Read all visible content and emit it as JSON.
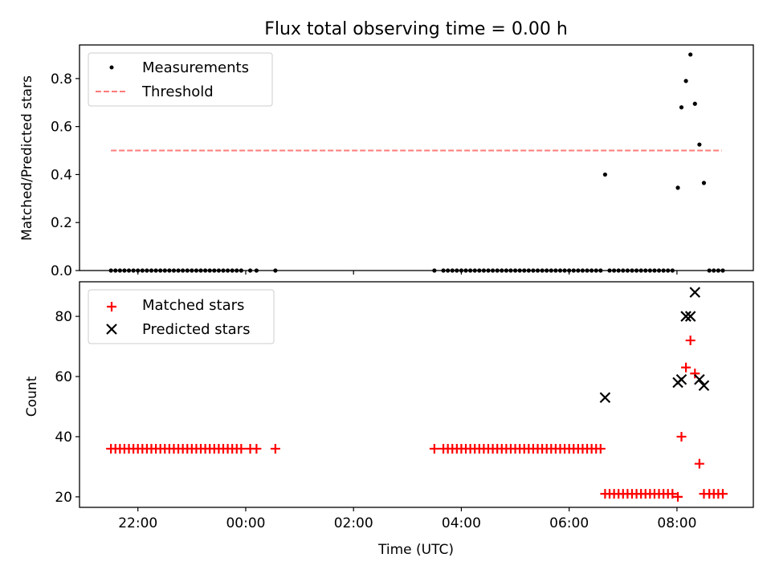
{
  "chart_data": [
    {
      "type": "scatter",
      "title": "Flux total observing time = 0.00 h",
      "xlabel": "",
      "ylabel": "Matched/Predicted stars",
      "ylim": [
        0.0,
        0.94
      ],
      "yticks": [
        "0.0",
        "0.2",
        "0.4",
        "0.6",
        "0.8"
      ],
      "legend_position": "top-left",
      "legend": [
        "Measurements",
        "Threshold"
      ],
      "threshold": {
        "name": "Threshold",
        "y": 0.5,
        "x_start": "21:30",
        "x_end": "08:50",
        "color": "#ff7a7a"
      },
      "series": [
        {
          "name": "Measurements",
          "color": "#000000",
          "points": [
            [
              "21:30",
              0
            ],
            [
              "21:35",
              0
            ],
            [
              "21:40",
              0
            ],
            [
              "21:45",
              0
            ],
            [
              "21:50",
              0
            ],
            [
              "21:55",
              0
            ],
            [
              "22:00",
              0
            ],
            [
              "22:05",
              0
            ],
            [
              "22:10",
              0
            ],
            [
              "22:15",
              0
            ],
            [
              "22:20",
              0
            ],
            [
              "22:25",
              0
            ],
            [
              "22:30",
              0
            ],
            [
              "22:35",
              0
            ],
            [
              "22:40",
              0
            ],
            [
              "22:45",
              0
            ],
            [
              "22:50",
              0
            ],
            [
              "22:55",
              0
            ],
            [
              "23:00",
              0
            ],
            [
              "23:05",
              0
            ],
            [
              "23:10",
              0
            ],
            [
              "23:15",
              0
            ],
            [
              "23:20",
              0
            ],
            [
              "23:25",
              0
            ],
            [
              "23:30",
              0
            ],
            [
              "23:35",
              0
            ],
            [
              "23:40",
              0
            ],
            [
              "23:45",
              0
            ],
            [
              "23:50",
              0
            ],
            [
              "23:55",
              0
            ],
            [
              "00:05",
              0
            ],
            [
              "00:12",
              0
            ],
            [
              "00:33",
              0
            ],
            [
              "03:30",
              0
            ],
            [
              "03:40",
              0
            ],
            [
              "03:45",
              0
            ],
            [
              "03:50",
              0
            ],
            [
              "03:55",
              0
            ],
            [
              "04:00",
              0
            ],
            [
              "04:05",
              0
            ],
            [
              "04:10",
              0
            ],
            [
              "04:15",
              0
            ],
            [
              "04:20",
              0
            ],
            [
              "04:25",
              0
            ],
            [
              "04:30",
              0
            ],
            [
              "04:35",
              0
            ],
            [
              "04:40",
              0
            ],
            [
              "04:45",
              0
            ],
            [
              "04:50",
              0
            ],
            [
              "04:55",
              0
            ],
            [
              "05:00",
              0
            ],
            [
              "05:05",
              0
            ],
            [
              "05:10",
              0
            ],
            [
              "05:15",
              0
            ],
            [
              "05:20",
              0
            ],
            [
              "05:25",
              0
            ],
            [
              "05:30",
              0
            ],
            [
              "05:35",
              0
            ],
            [
              "05:40",
              0
            ],
            [
              "05:45",
              0
            ],
            [
              "05:50",
              0
            ],
            [
              "05:55",
              0
            ],
            [
              "06:00",
              0
            ],
            [
              "06:05",
              0
            ],
            [
              "06:10",
              0
            ],
            [
              "06:15",
              0
            ],
            [
              "06:20",
              0
            ],
            [
              "06:25",
              0
            ],
            [
              "06:30",
              0
            ],
            [
              "06:35",
              0
            ],
            [
              "06:40",
              0.4
            ],
            [
              "06:45",
              0
            ],
            [
              "06:50",
              0
            ],
            [
              "06:55",
              0
            ],
            [
              "07:00",
              0
            ],
            [
              "07:05",
              0
            ],
            [
              "07:10",
              0
            ],
            [
              "07:15",
              0
            ],
            [
              "07:20",
              0
            ],
            [
              "07:25",
              0
            ],
            [
              "07:30",
              0
            ],
            [
              "07:35",
              0
            ],
            [
              "07:40",
              0
            ],
            [
              "07:45",
              0
            ],
            [
              "07:50",
              0
            ],
            [
              "07:55",
              0
            ],
            [
              "08:01",
              0.345
            ],
            [
              "08:05",
              0.68
            ],
            [
              "08:10",
              0.79
            ],
            [
              "08:15",
              0.9
            ],
            [
              "08:20",
              0.695
            ],
            [
              "08:25",
              0.525
            ],
            [
              "08:30",
              0.365
            ],
            [
              "08:36",
              0
            ],
            [
              "08:41",
              0
            ],
            [
              "08:46",
              0
            ],
            [
              "08:51",
              0
            ]
          ]
        }
      ]
    },
    {
      "type": "scatter",
      "title": "",
      "xlabel": "Time (UTC)",
      "ylabel": "Count",
      "ylim": [
        16.5,
        91.5
      ],
      "yticks": [
        "20",
        "40",
        "60",
        "80"
      ],
      "xticks": [
        "22:00",
        "00:00",
        "02:00",
        "04:00",
        "06:00",
        "08:00"
      ],
      "xlim": [
        "20:55",
        "09:25"
      ],
      "legend_position": "top-left",
      "legend": [
        "Matched stars",
        "Predicted stars"
      ],
      "series": [
        {
          "name": "Matched stars",
          "color": "#ff0000",
          "marker": "+",
          "points": [
            [
              "21:30",
              36
            ],
            [
              "21:35",
              36
            ],
            [
              "21:40",
              36
            ],
            [
              "21:45",
              36
            ],
            [
              "21:50",
              36
            ],
            [
              "21:55",
              36
            ],
            [
              "22:00",
              36
            ],
            [
              "22:05",
              36
            ],
            [
              "22:10",
              36
            ],
            [
              "22:15",
              36
            ],
            [
              "22:20",
              36
            ],
            [
              "22:25",
              36
            ],
            [
              "22:30",
              36
            ],
            [
              "22:35",
              36
            ],
            [
              "22:40",
              36
            ],
            [
              "22:45",
              36
            ],
            [
              "22:50",
              36
            ],
            [
              "22:55",
              36
            ],
            [
              "23:00",
              36
            ],
            [
              "23:05",
              36
            ],
            [
              "23:10",
              36
            ],
            [
              "23:15",
              36
            ],
            [
              "23:20",
              36
            ],
            [
              "23:25",
              36
            ],
            [
              "23:30",
              36
            ],
            [
              "23:35",
              36
            ],
            [
              "23:40",
              36
            ],
            [
              "23:45",
              36
            ],
            [
              "23:50",
              36
            ],
            [
              "23:55",
              36
            ],
            [
              "00:05",
              36
            ],
            [
              "00:12",
              36
            ],
            [
              "00:33",
              36
            ],
            [
              "03:30",
              36
            ],
            [
              "03:40",
              36
            ],
            [
              "03:45",
              36
            ],
            [
              "03:50",
              36
            ],
            [
              "03:55",
              36
            ],
            [
              "04:00",
              36
            ],
            [
              "04:05",
              36
            ],
            [
              "04:10",
              36
            ],
            [
              "04:15",
              36
            ],
            [
              "04:20",
              36
            ],
            [
              "04:25",
              36
            ],
            [
              "04:30",
              36
            ],
            [
              "04:35",
              36
            ],
            [
              "04:40",
              36
            ],
            [
              "04:45",
              36
            ],
            [
              "04:50",
              36
            ],
            [
              "04:55",
              36
            ],
            [
              "05:00",
              36
            ],
            [
              "05:05",
              36
            ],
            [
              "05:10",
              36
            ],
            [
              "05:15",
              36
            ],
            [
              "05:20",
              36
            ],
            [
              "05:25",
              36
            ],
            [
              "05:30",
              36
            ],
            [
              "05:35",
              36
            ],
            [
              "05:40",
              36
            ],
            [
              "05:45",
              36
            ],
            [
              "05:50",
              36
            ],
            [
              "05:55",
              36
            ],
            [
              "06:00",
              36
            ],
            [
              "06:05",
              36
            ],
            [
              "06:10",
              36
            ],
            [
              "06:15",
              36
            ],
            [
              "06:20",
              36
            ],
            [
              "06:25",
              36
            ],
            [
              "06:30",
              36
            ],
            [
              "06:35",
              36
            ],
            [
              "06:40",
              21
            ],
            [
              "06:45",
              21
            ],
            [
              "06:50",
              21
            ],
            [
              "06:55",
              21
            ],
            [
              "07:00",
              21
            ],
            [
              "07:05",
              21
            ],
            [
              "07:10",
              21
            ],
            [
              "07:15",
              21
            ],
            [
              "07:20",
              21
            ],
            [
              "07:25",
              21
            ],
            [
              "07:30",
              21
            ],
            [
              "07:35",
              21
            ],
            [
              "07:40",
              21
            ],
            [
              "07:45",
              21
            ],
            [
              "07:50",
              21
            ],
            [
              "07:55",
              21
            ],
            [
              "08:01",
              20
            ],
            [
              "08:05",
              40
            ],
            [
              "08:10",
              63
            ],
            [
              "08:15",
              72
            ],
            [
              "08:20",
              61
            ],
            [
              "08:25",
              31
            ],
            [
              "08:30",
              21
            ],
            [
              "08:36",
              21
            ],
            [
              "08:41",
              21
            ],
            [
              "08:46",
              21
            ],
            [
              "08:51",
              21
            ]
          ]
        },
        {
          "name": "Predicted stars",
          "color": "#000000",
          "marker": "x",
          "points": [
            [
              "06:40",
              53
            ],
            [
              "08:01",
              58
            ],
            [
              "08:05",
              59
            ],
            [
              "08:10",
              80
            ],
            [
              "08:15",
              80
            ],
            [
              "08:20",
              88
            ],
            [
              "08:25",
              59
            ],
            [
              "08:30",
              57
            ]
          ]
        }
      ]
    }
  ]
}
